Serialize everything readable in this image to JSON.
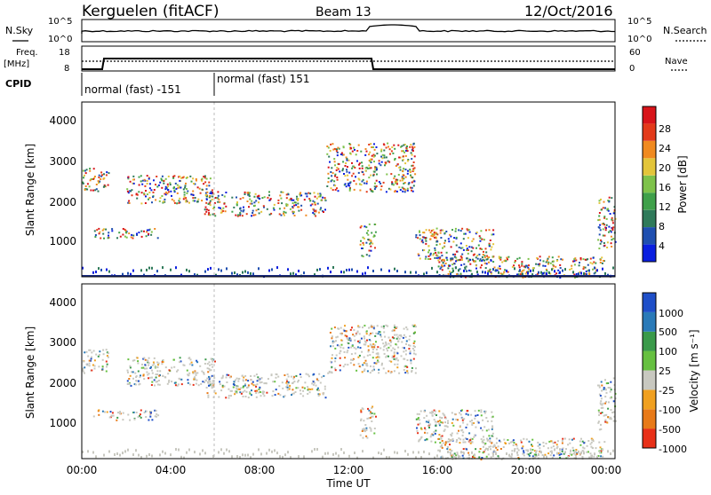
{
  "header": {
    "station": "Kerguelen (fitACF)",
    "beam": "Beam 13",
    "date": "12/Oct/2016"
  },
  "noise_panel": {
    "left_label": "N.Sky",
    "right_label": "N.Search",
    "left_ticks": [
      "10^5",
      "10^0"
    ],
    "right_ticks": [
      "10^5",
      "10^0"
    ]
  },
  "freq_panel": {
    "left_label_1": "Freq.",
    "left_label_2": "[MHz]",
    "left_ticks": [
      "18",
      "8"
    ],
    "right_label": "Nave",
    "right_ticks": [
      "60",
      "0"
    ]
  },
  "cpid_panel": {
    "label": "CPID",
    "segments": [
      "normal (fast) -151",
      "normal (fast) 151"
    ]
  },
  "time_axis": {
    "label": "Time UT",
    "ticks": [
      "00:00",
      "04:00",
      "08:00",
      "12:00",
      "16:00",
      "20:00",
      "00:00"
    ]
  },
  "power_panel": {
    "ylabel": "Slant Range [km]",
    "yticks": [
      "4000",
      "3000",
      "2000",
      "1000"
    ],
    "colorbar_label": "Power [dB]",
    "colorbar_ticks": [
      "28",
      "24",
      "20",
      "16",
      "12",
      "8",
      "4"
    ],
    "colors": [
      "#0a1fe0",
      "#1f4fb0",
      "#2f7a5a",
      "#3fa04a",
      "#7ec24a",
      "#e3c53a",
      "#f08a20",
      "#e33a1a",
      "#d8141a"
    ]
  },
  "velocity_panel": {
    "ylabel": "Slant Range [km]",
    "yticks": [
      "4000",
      "3000",
      "2000",
      "1000"
    ],
    "colorbar_label": "Velocity [m s⁻¹]",
    "colorbar_ticks": [
      "1000",
      "500",
      "100",
      "25",
      "-25",
      "-100",
      "-500",
      "-1000"
    ],
    "colors": [
      "#1f4fc8",
      "#2a7ab8",
      "#3a9a4a",
      "#66c040",
      "#c8c8c0",
      "#f0a020",
      "#e87a18",
      "#e83018"
    ]
  },
  "chart_data": {
    "type": "heatmap",
    "x_range_hours": [
      0,
      24
    ],
    "y_range_km": [
      180,
      4500
    ],
    "features": [
      {
        "t0": 0.0,
        "t1": 1.2,
        "r0": 2300,
        "r1": 2900
      },
      {
        "t0": 0.5,
        "t1": 3.5,
        "r0": 1150,
        "r1": 1400
      },
      {
        "t0": 2.0,
        "t1": 6.0,
        "r0": 2000,
        "r1": 2700
      },
      {
        "t0": 5.5,
        "t1": 11.0,
        "r0": 1700,
        "r1": 2300
      },
      {
        "t0": 11.0,
        "t1": 15.0,
        "r0": 2300,
        "r1": 3500
      },
      {
        "t0": 12.5,
        "t1": 13.2,
        "r0": 700,
        "r1": 1500
      },
      {
        "t0": 15.0,
        "t1": 18.5,
        "r0": 600,
        "r1": 1400
      },
      {
        "t0": 16.0,
        "t1": 23.5,
        "r0": 180,
        "r1": 700
      },
      {
        "t0": 23.2,
        "t1": 24.0,
        "r0": 900,
        "r1": 2200
      }
    ]
  }
}
